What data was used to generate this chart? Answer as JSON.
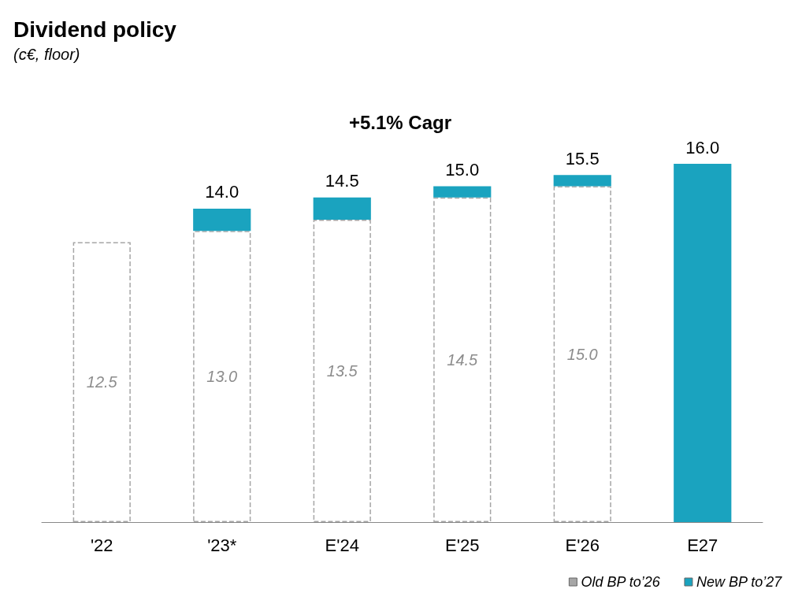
{
  "chart_data": {
    "type": "bar",
    "title": "Dividend policy",
    "subtitle": "(c€, floor)",
    "annotations": [
      "+5.1% Cagr"
    ],
    "categories": [
      "'22",
      "'23*",
      "E'24",
      "E'25",
      "E'26",
      "E27"
    ],
    "stacked": true,
    "legend": "bottom right",
    "grid": false,
    "totals": [
      null,
      "14.0",
      "14.5",
      "15.0",
      "15.5",
      "16.0"
    ],
    "series": [
      {
        "name": "Old BP to’26",
        "color": "#a6a6a6",
        "line_style": "dashed",
        "values": [
          12.5,
          13.0,
          13.5,
          14.5,
          15.0,
          null
        ],
        "value_labels": [
          "12.5",
          "13.0",
          "13.5",
          "14.5",
          "15.0",
          null
        ]
      },
      {
        "name": "New BP to’27",
        "color": "#1aa3bf",
        "values": [
          null,
          1.0,
          1.0,
          0.5,
          0.5,
          16.0
        ]
      }
    ]
  }
}
